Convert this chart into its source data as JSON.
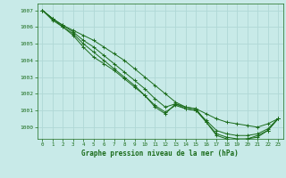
{
  "title": "Graphe pression niveau de la mer (hPa)",
  "background_color": "#c8eae8",
  "grid_color": "#b0d8d6",
  "line_color": "#1a6b1a",
  "marker_color": "#1a6b1a",
  "xlim": [
    -0.5,
    23.5
  ],
  "ylim": [
    999.3,
    1007.4
  ],
  "yticks": [
    1000,
    1001,
    1002,
    1003,
    1004,
    1005,
    1006,
    1007
  ],
  "xticks": [
    0,
    1,
    2,
    3,
    4,
    5,
    6,
    7,
    8,
    9,
    10,
    11,
    12,
    13,
    14,
    15,
    16,
    17,
    18,
    19,
    20,
    21,
    22,
    23
  ],
  "series": [
    [
      1007.0,
      1006.5,
      1006.1,
      1005.8,
      1005.5,
      1005.2,
      1004.8,
      1004.4,
      1004.0,
      1003.5,
      1003.0,
      1002.5,
      1002.0,
      1001.5,
      1001.2,
      1001.1,
      1000.8,
      1000.5,
      1000.3,
      1000.2,
      1000.1,
      1000.0,
      1000.2,
      1000.5
    ],
    [
      1007.0,
      1006.5,
      1006.1,
      1005.7,
      1005.2,
      1004.8,
      1004.3,
      1003.8,
      1003.3,
      1002.8,
      1002.3,
      1001.7,
      1001.2,
      1001.4,
      1001.1,
      1001.0,
      1000.4,
      999.8,
      999.6,
      999.5,
      999.5,
      999.6,
      999.9,
      1000.5
    ],
    [
      1007.0,
      1006.5,
      1006.0,
      1005.6,
      1005.0,
      1004.5,
      1004.0,
      1003.5,
      1003.0,
      1002.5,
      1001.9,
      1001.3,
      1000.9,
      1001.3,
      1001.1,
      1001.0,
      1000.3,
      999.6,
      999.4,
      999.3,
      999.3,
      999.5,
      999.8,
      1000.5
    ],
    [
      1007.0,
      1006.4,
      1006.0,
      1005.5,
      1004.8,
      1004.2,
      1003.8,
      1003.4,
      1002.9,
      1002.4,
      1001.9,
      1001.2,
      1000.8,
      1001.4,
      1001.2,
      1001.1,
      1000.3,
      999.5,
      999.3,
      999.2,
      999.3,
      999.4,
      999.8,
      1000.5
    ]
  ]
}
